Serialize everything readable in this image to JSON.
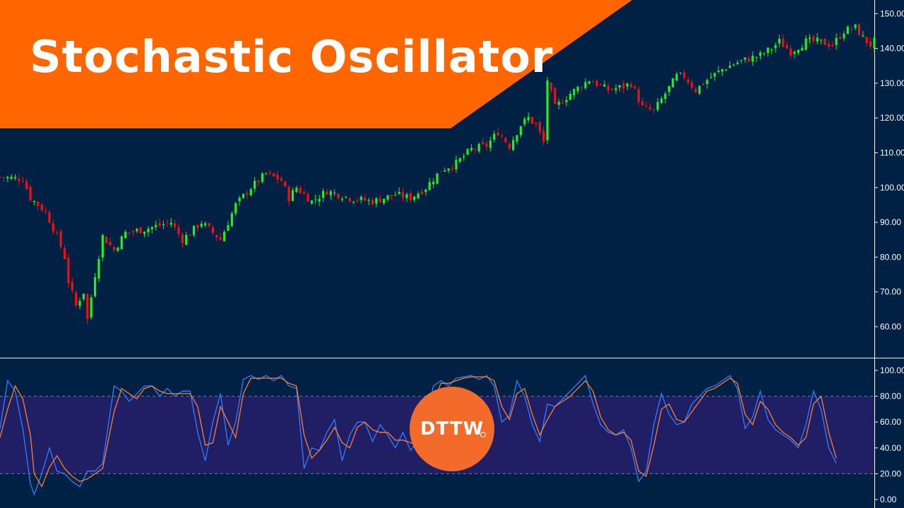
{
  "title": "Stochastic Oscillator",
  "brand": {
    "text": "DTTW",
    "mark": "®"
  },
  "colors": {
    "background": "#002144",
    "banner": "#ff6600",
    "up": "#22ee22",
    "down": "#ee1111",
    "k_line": "#2f7fff",
    "d_line": "#ff7f2a",
    "band": "#201e64",
    "axis": "#ffffff",
    "logo": "#f26b2a"
  },
  "chart_data": [
    {
      "type": "candlestick",
      "title": "",
      "yticks": [
        "60.00",
        "70.00",
        "80.00",
        "90.00",
        "100.00",
        "110.00",
        "120.00",
        "130.00",
        "140.00",
        "150.00"
      ],
      "ylim": [
        52,
        152
      ],
      "grid": false,
      "close_path": [
        [
          0,
          103
        ],
        [
          6,
          102.5
        ],
        [
          8,
          97
        ],
        [
          12,
          93
        ],
        [
          15,
          86
        ],
        [
          17,
          80
        ],
        [
          18,
          73
        ],
        [
          20,
          66
        ],
        [
          22,
          70
        ],
        [
          23,
          62
        ],
        [
          25,
          75
        ],
        [
          27,
          86
        ],
        [
          30,
          82
        ],
        [
          33,
          87
        ],
        [
          38,
          88
        ],
        [
          45,
          90
        ],
        [
          48,
          85
        ],
        [
          53,
          90
        ],
        [
          58,
          85
        ],
        [
          62,
          95
        ],
        [
          66,
          100
        ],
        [
          70,
          104
        ],
        [
          74,
          102
        ],
        [
          76,
          97
        ],
        [
          78,
          100
        ],
        [
          82,
          96
        ],
        [
          86,
          99
        ],
        [
          92,
          97
        ],
        [
          98,
          96
        ],
        [
          104,
          98
        ],
        [
          108,
          97
        ],
        [
          112,
          100
        ],
        [
          116,
          105
        ],
        [
          120,
          107
        ],
        [
          124,
          111
        ],
        [
          128,
          112
        ],
        [
          131,
          116
        ],
        [
          134,
          112
        ],
        [
          137,
          118
        ],
        [
          139,
          120
        ],
        [
          141,
          118
        ],
        [
          143,
          113
        ],
        [
          144,
          131
        ],
        [
          146,
          123
        ],
        [
          150,
          127
        ],
        [
          155,
          131
        ],
        [
          160,
          128
        ],
        [
          164,
          129
        ],
        [
          166,
          130
        ],
        [
          169,
          123
        ],
        [
          172,
          122
        ],
        [
          175,
          127
        ],
        [
          178,
          132
        ],
        [
          180,
          132
        ],
        [
          183,
          128
        ],
        [
          186,
          131
        ],
        [
          190,
          134
        ],
        [
          194,
          136
        ],
        [
          197,
          137
        ],
        [
          200,
          138
        ],
        [
          203,
          140
        ],
        [
          205,
          142
        ],
        [
          208,
          139
        ],
        [
          212,
          142
        ],
        [
          215,
          142
        ],
        [
          219,
          141
        ],
        [
          222,
          145
        ],
        [
          225,
          146
        ],
        [
          227,
          143
        ],
        [
          229,
          141
        ],
        [
          230,
          142
        ]
      ]
    },
    {
      "type": "line",
      "title": "",
      "yticks": [
        "0.00",
        "20.00",
        "40.00",
        "60.00",
        "80.00",
        "100.00"
      ],
      "ylim": [
        -3,
        104
      ],
      "band": [
        20,
        80
      ],
      "series": [
        {
          "color_key": "k_line",
          "points": [
            [
              0,
              55
            ],
            [
              2,
              92
            ],
            [
              4,
              84
            ],
            [
              6,
              55
            ],
            [
              8,
              12
            ],
            [
              9,
              4
            ],
            [
              11,
              20
            ],
            [
              13,
              40
            ],
            [
              15,
              22
            ],
            [
              17,
              20
            ],
            [
              19,
              14
            ],
            [
              21,
              10
            ],
            [
              23,
              22
            ],
            [
              25,
              22
            ],
            [
              27,
              28
            ],
            [
              30,
              88
            ],
            [
              32,
              84
            ],
            [
              34,
              76
            ],
            [
              36,
              82
            ],
            [
              38,
              88
            ],
            [
              40,
              88
            ],
            [
              42,
              80
            ],
            [
              44,
              86
            ],
            [
              46,
              80
            ],
            [
              48,
              84
            ],
            [
              50,
              84
            ],
            [
              52,
              52
            ],
            [
              54,
              30
            ],
            [
              56,
              60
            ],
            [
              58,
              82
            ],
            [
              60,
              42
            ],
            [
              62,
              60
            ],
            [
              64,
              93
            ],
            [
              66,
              96
            ],
            [
              68,
              93
            ],
            [
              70,
              96
            ],
            [
              72,
              92
            ],
            [
              74,
              96
            ],
            [
              76,
              88
            ],
            [
              78,
              86
            ],
            [
              80,
              24
            ],
            [
              82,
              40
            ],
            [
              84,
              38
            ],
            [
              86,
              52
            ],
            [
              88,
              62
            ],
            [
              90,
              30
            ],
            [
              92,
              50
            ],
            [
              94,
              60
            ],
            [
              96,
              60
            ],
            [
              98,
              45
            ],
            [
              100,
              58
            ],
            [
              102,
              50
            ],
            [
              104,
              40
            ],
            [
              106,
              52
            ],
            [
              108,
              38
            ],
            [
              110,
              46
            ],
            [
              112,
              56
            ],
            [
              114,
              88
            ],
            [
              116,
              92
            ],
            [
              118,
              88
            ],
            [
              120,
              94
            ],
            [
              122,
              95
            ],
            [
              124,
              96
            ],
            [
              126,
              93
            ],
            [
              128,
              96
            ],
            [
              130,
              88
            ],
            [
              132,
              60
            ],
            [
              134,
              65
            ],
            [
              136,
              92
            ],
            [
              138,
              80
            ],
            [
              140,
              58
            ],
            [
              142,
              45
            ],
            [
              144,
              74
            ],
            [
              146,
              72
            ],
            [
              148,
              78
            ],
            [
              150,
              84
            ],
            [
              152,
              90
            ],
            [
              154,
              96
            ],
            [
              156,
              74
            ],
            [
              158,
              58
            ],
            [
              160,
              52
            ],
            [
              162,
              50
            ],
            [
              164,
              54
            ],
            [
              166,
              40
            ],
            [
              168,
              14
            ],
            [
              170,
              22
            ],
            [
              172,
              58
            ],
            [
              174,
              82
            ],
            [
              176,
              66
            ],
            [
              178,
              58
            ],
            [
              180,
              60
            ],
            [
              182,
              74
            ],
            [
              184,
              80
            ],
            [
              186,
              86
            ],
            [
              188,
              88
            ],
            [
              190,
              92
            ],
            [
              192,
              96
            ],
            [
              194,
              86
            ],
            [
              196,
              55
            ],
            [
              198,
              64
            ],
            [
              200,
              84
            ],
            [
              202,
              62
            ],
            [
              204,
              54
            ],
            [
              206,
              50
            ],
            [
              208,
              46
            ],
            [
              210,
              40
            ],
            [
              212,
              58
            ],
            [
              214,
              84
            ],
            [
              216,
              70
            ],
            [
              218,
              40
            ],
            [
              220,
              28
            ]
          ]
        },
        {
          "color_key": "d_line",
          "points": [
            [
              0,
              48
            ],
            [
              2,
              70
            ],
            [
              4,
              88
            ],
            [
              6,
              78
            ],
            [
              8,
              50
            ],
            [
              9,
              20
            ],
            [
              11,
              10
            ],
            [
              13,
              25
            ],
            [
              15,
              34
            ],
            [
              17,
              24
            ],
            [
              19,
              18
            ],
            [
              21,
              14
            ],
            [
              23,
              16
            ],
            [
              25,
              20
            ],
            [
              27,
              24
            ],
            [
              30,
              68
            ],
            [
              32,
              86
            ],
            [
              34,
              82
            ],
            [
              36,
              78
            ],
            [
              38,
              86
            ],
            [
              40,
              88
            ],
            [
              42,
              84
            ],
            [
              44,
              82
            ],
            [
              46,
              82
            ],
            [
              48,
              82
            ],
            [
              50,
              82
            ],
            [
              52,
              72
            ],
            [
              54,
              42
            ],
            [
              56,
              44
            ],
            [
              58,
              72
            ],
            [
              60,
              60
            ],
            [
              62,
              48
            ],
            [
              64,
              82
            ],
            [
              66,
              94
            ],
            [
              68,
              94
            ],
            [
              70,
              94
            ],
            [
              72,
              94
            ],
            [
              74,
              94
            ],
            [
              76,
              90
            ],
            [
              78,
              88
            ],
            [
              80,
              50
            ],
            [
              82,
              32
            ],
            [
              84,
              38
            ],
            [
              86,
              46
            ],
            [
              88,
              56
            ],
            [
              90,
              44
            ],
            [
              92,
              40
            ],
            [
              94,
              56
            ],
            [
              96,
              60
            ],
            [
              98,
              54
            ],
            [
              100,
              52
            ],
            [
              102,
              52
            ],
            [
              104,
              46
            ],
            [
              106,
              46
            ],
            [
              108,
              44
            ],
            [
              110,
              42
            ],
            [
              112,
              50
            ],
            [
              114,
              76
            ],
            [
              116,
              90
            ],
            [
              118,
              90
            ],
            [
              120,
              92
            ],
            [
              122,
              94
            ],
            [
              124,
              95
            ],
            [
              126,
              95
            ],
            [
              128,
              95
            ],
            [
              130,
              92
            ],
            [
              132,
              72
            ],
            [
              134,
              62
            ],
            [
              136,
              82
            ],
            [
              138,
              86
            ],
            [
              140,
              66
            ],
            [
              142,
              50
            ],
            [
              144,
              62
            ],
            [
              146,
              72
            ],
            [
              148,
              76
            ],
            [
              150,
              80
            ],
            [
              152,
              86
            ],
            [
              154,
              92
            ],
            [
              156,
              84
            ],
            [
              158,
              64
            ],
            [
              160,
              54
            ],
            [
              162,
              50
            ],
            [
              164,
              52
            ],
            [
              166,
              46
            ],
            [
              168,
              22
            ],
            [
              170,
              18
            ],
            [
              172,
              42
            ],
            [
              174,
              70
            ],
            [
              176,
              74
            ],
            [
              178,
              62
            ],
            [
              180,
              60
            ],
            [
              182,
              68
            ],
            [
              184,
              76
            ],
            [
              186,
              84
            ],
            [
              188,
              86
            ],
            [
              190,
              90
            ],
            [
              192,
              94
            ],
            [
              194,
              90
            ],
            [
              196,
              66
            ],
            [
              198,
              58
            ],
            [
              200,
              76
            ],
            [
              202,
              70
            ],
            [
              204,
              58
            ],
            [
              206,
              52
            ],
            [
              208,
              48
            ],
            [
              210,
              42
            ],
            [
              212,
              48
            ],
            [
              214,
              74
            ],
            [
              216,
              80
            ],
            [
              218,
              52
            ],
            [
              220,
              32
            ]
          ]
        }
      ]
    }
  ]
}
